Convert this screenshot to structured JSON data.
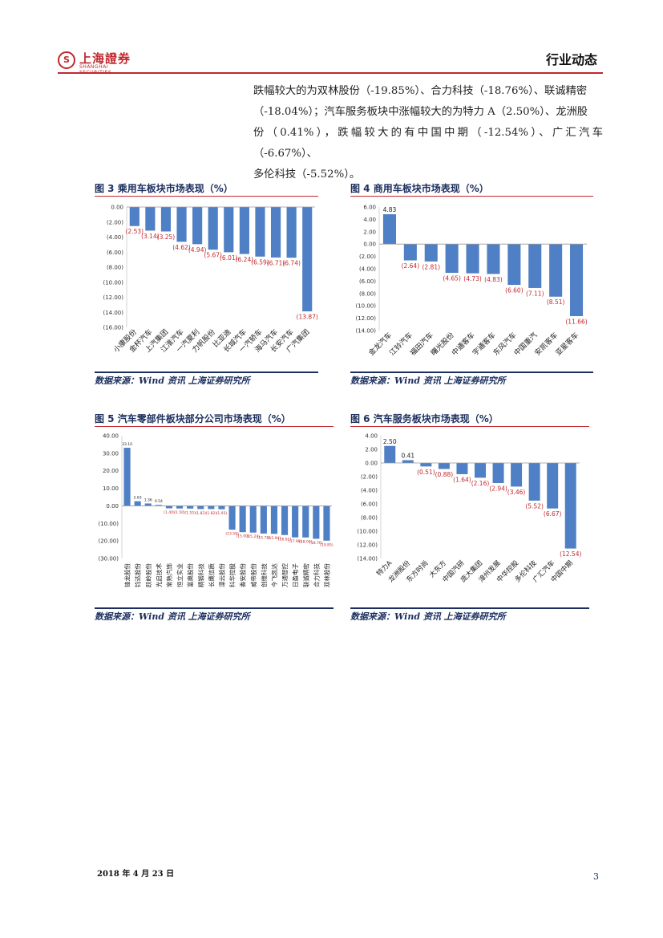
{
  "header": {
    "logo_name": "上海證券",
    "logo_sub": "SHANGHAI SECURITIES",
    "logo_mark": "S",
    "section_title": "行业动态"
  },
  "body_text": [
    "跌幅较大的为双林股份（-19.85%）、合力科技（-18.76%）、联诚精密",
    "（-18.04%）；汽车服务板块中涨幅较大的为特力 A（2.50%）、龙洲股",
    "份（0.41%），跌幅较大的有中国中期（-12.54%）、广汇汽车（-6.67%）、",
    "多伦科技（-5.52%）。"
  ],
  "figures": [
    {
      "title": "图 3 乘用车板块市场表现（%）",
      "source": "数据来源：Wind 资讯 上海证券研究所"
    },
    {
      "title": "图 4 商用车板块市场表现（%）",
      "source": "数据来源：Wind 资讯 上海证券研究所"
    },
    {
      "title": "图 5 汽车零部件板块部分公司市场表现（%）",
      "source": "数据来源：Wind 资讯 上海证券研究所"
    },
    {
      "title": "图 6 汽车服务板块市场表现（%）",
      "source": "数据来源：Wind 资讯 上海证券研究所"
    }
  ],
  "chart_data": [
    {
      "type": "bar",
      "title": "图 3 乘用车板块市场表现（%）",
      "categories": [
        "小康股份",
        "金杯汽车",
        "上汽集团",
        "江淮汽车",
        "一汽夏利",
        "力帆股份",
        "比亚迪",
        "长城汽车",
        "一汽轿车",
        "海马汽车",
        "长安汽车",
        "广汽集团"
      ],
      "values": [
        -2.53,
        -3.14,
        -3.25,
        -4.62,
        -4.94,
        -5.67,
        -6.01,
        -6.24,
        -6.59,
        -6.71,
        -6.74,
        -13.87
      ],
      "data_labels": [
        "(2.53)",
        "(3.14)",
        "(3.25)",
        "(4.62)",
        "(4.94)",
        "(5.67)",
        "(6.01)",
        "(6.24)",
        "(6.59)",
        "(6.71)",
        "(6.74)",
        "(13.87)"
      ],
      "ylim": [
        -16,
        0
      ],
      "yticks": [
        0,
        -2,
        -4,
        -6,
        -8,
        -10,
        -12,
        -14,
        -16
      ],
      "ytick_labels": [
        "0.00",
        "(2.00)",
        "(4.00)",
        "(6.00)",
        "(8.00)",
        "(10.00)",
        "(12.00)",
        "(14.00)",
        "(16.00)"
      ],
      "bar_color": "#4f7fc4",
      "label_color": "#c0282e"
    },
    {
      "type": "bar",
      "title": "图 4 商用车板块市场表现（%）",
      "categories": [
        "金龙汽车",
        "江铃汽车",
        "福田汽车",
        "曙光股份",
        "中通客车",
        "宇通客车",
        "东风汽车",
        "中国重汽",
        "安凯客车",
        "亚星客车"
      ],
      "values": [
        4.83,
        -2.64,
        -2.81,
        -4.65,
        -4.73,
        -4.83,
        -6.6,
        -7.11,
        -8.51,
        -11.66
      ],
      "data_labels": [
        "4.83",
        "(2.64)",
        "(2.81)",
        "(4.65)",
        "(4.73)",
        "(4.83)",
        "(6.60)",
        "(7.11)",
        "(8.51)",
        "(11.66)"
      ],
      "ylim": [
        -14,
        6
      ],
      "yticks": [
        6,
        4,
        2,
        0,
        -2,
        -4,
        -6,
        -8,
        -10,
        -12,
        -14
      ],
      "ytick_labels": [
        "6.00",
        "4.00",
        "2.00",
        "0.00",
        "(2.00)",
        "(4.00)",
        "(6.00)",
        "(8.00)",
        "(10.00)",
        "(12.00)",
        "(14.00)"
      ],
      "bar_color": "#4f7fc4",
      "label_color": "#c0282e"
    },
    {
      "type": "bar",
      "title": "图 5 汽车零部件板块部分公司市场表现（%）",
      "categories": [
        "锋龙股份",
        "钧达股份",
        "跃岭股份",
        "光启技术",
        "常熟汽饰",
        "恒立实业",
        "富奥股份",
        "精锻科技",
        "长鹰信质",
        "漂云股份",
        "科华控股",
        "香安股份",
        "威帝股份",
        "创维科技",
        "今飞凯达",
        "万通智控",
        "日盈电子",
        "联诚精密",
        "合力科技",
        "双林股份"
      ],
      "values": [
        33.1,
        2.63,
        1.36,
        0.54,
        -1.4,
        -1.5,
        -1.55,
        -1.82,
        -1.82,
        -1.93,
        -13.59,
        -15.0,
        -15.24,
        -15.78,
        -15.94,
        -16.62,
        -17.98,
        -18.04,
        -18.76,
        -19.85
      ],
      "data_labels": [
        "33.10",
        "2.63",
        "1.36",
        "0.54",
        "(1.40)",
        "(1.50)",
        "(1.55)",
        "(1.82)",
        "(1.82)",
        "(1.93)",
        "(13.59)",
        "(15.00)",
        "(15.24)",
        "(15.78)",
        "(15.94)",
        "(16.62)",
        "(17.98)",
        "(18.04)",
        "(18.76)",
        "(19.85)"
      ],
      "ylim": [
        -30,
        40
      ],
      "yticks": [
        40,
        30,
        20,
        10,
        0,
        -10,
        -20,
        -30
      ],
      "ytick_labels": [
        "40.00",
        "30.00",
        "20.00",
        "10.00",
        "0.00",
        "(10.00)",
        "(20.00)",
        "(30.00)"
      ],
      "bar_color": "#4f7fc4",
      "label_color": "#c0282e"
    },
    {
      "type": "bar",
      "title": "图 6 汽车服务板块市场表现（%）",
      "categories": [
        "特力A",
        "龙洲股份",
        "东方时尚",
        "大东方",
        "中国汽研",
        "庞大集团",
        "漳州发展",
        "中华控股",
        "多伦科技",
        "广汇汽车",
        "中国中期"
      ],
      "values": [
        2.5,
        0.41,
        -0.51,
        -0.88,
        -1.64,
        -2.16,
        -2.94,
        -3.46,
        -5.52,
        -6.67,
        -12.54
      ],
      "data_labels": [
        "2.50",
        "0.41",
        "(0.51)",
        "(0.88)",
        "(1.64)",
        "(2.16)",
        "(2.94)",
        "(3.46)",
        "(5.52)",
        "(6.67)",
        "(12.54)"
      ],
      "ylim": [
        -14,
        4
      ],
      "yticks": [
        4,
        2,
        0,
        -2,
        -4,
        -6,
        -8,
        -10,
        -12,
        -14
      ],
      "ytick_labels": [
        "4.00",
        "2.00",
        "0.00",
        "(2.00)",
        "(4.00)",
        "(6.00)",
        "(8.00)",
        "(10.00)",
        "(12.00)",
        "(14.00)"
      ],
      "bar_color": "#4f7fc4",
      "label_color": "#c0282e"
    }
  ],
  "footer": {
    "date": "2018 年 4 月 23 日",
    "page": "3"
  }
}
